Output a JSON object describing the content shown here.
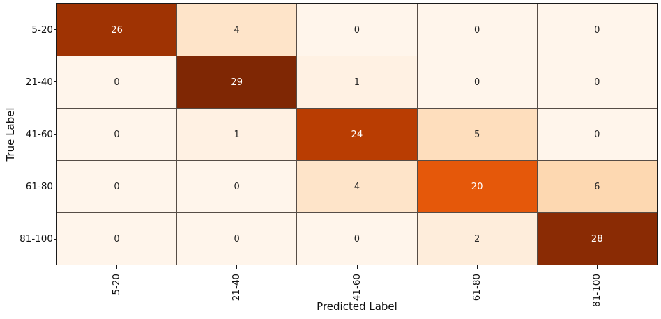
{
  "chart_data": {
    "type": "heatmap",
    "title": "",
    "xlabel": "Predicted Label",
    "ylabel": "True Label",
    "x_tick_labels": [
      "5-20",
      "21-40",
      "41-60",
      "61-80",
      "81-100"
    ],
    "y_tick_labels": [
      "5-20",
      "21-40",
      "41-60",
      "61-80",
      "81-100"
    ],
    "matrix": [
      [
        26,
        4,
        0,
        0,
        0
      ],
      [
        0,
        29,
        1,
        0,
        0
      ],
      [
        0,
        1,
        24,
        5,
        0
      ],
      [
        0,
        0,
        4,
        20,
        6
      ],
      [
        0,
        0,
        0,
        2,
        28
      ]
    ],
    "vmin": 0,
    "vmax": 29,
    "colormap": "Oranges",
    "cell_colors": [
      [
        "#9f3303",
        "#fee4c9",
        "#fff5eb",
        "#fff5eb",
        "#fff5eb"
      ],
      [
        "#fff5eb",
        "#7f2704",
        "#fff1e3",
        "#fff5eb",
        "#fff5eb"
      ],
      [
        "#fff5eb",
        "#fff1e3",
        "#b93d02",
        "#fedebd",
        "#fff5eb"
      ],
      [
        "#fff5eb",
        "#fff5eb",
        "#fee4c9",
        "#e5580a",
        "#fdd8b1"
      ],
      [
        "#fff5eb",
        "#fff5eb",
        "#fff5eb",
        "#feeddb",
        "#8a2b04"
      ]
    ],
    "annot_color_dark": "#262626",
    "annot_color_light": "#ffffff",
    "grid_line_color": "#564c46",
    "border_color": "#1a1a1a",
    "grid": true,
    "legend_position": "none",
    "x_axis_tick_rotation_deg": 90
  }
}
